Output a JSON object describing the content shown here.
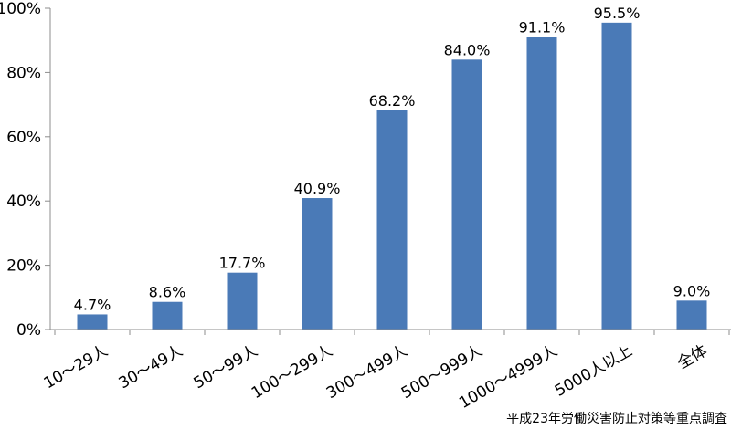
{
  "chart_data": {
    "type": "bar",
    "categories": [
      "10～29人",
      "30～49人",
      "50～99人",
      "100～299人",
      "300～499人",
      "500～999人",
      "1000～4999人",
      "5000人以上",
      "全体"
    ],
    "values": [
      4.7,
      8.6,
      17.7,
      40.9,
      68.2,
      84.0,
      91.1,
      95.5,
      9.0
    ],
    "value_labels": [
      "4.7%",
      "8.6%",
      "17.7%",
      "40.9%",
      "68.2%",
      "84.0%",
      "91.1%",
      "95.5%",
      "9.0%"
    ],
    "y_ticks": [
      0,
      20,
      40,
      60,
      80,
      100
    ],
    "y_tick_labels": [
      "0%",
      "20%",
      "40%",
      "60%",
      "80%",
      "100%"
    ],
    "ylim": [
      0,
      100
    ],
    "grid": false,
    "legend": "none",
    "bar_color": "#4a7ab7",
    "axis_color": "#8c8c8c",
    "source_note": "平成23年労働災害防止対策等重点調査"
  }
}
